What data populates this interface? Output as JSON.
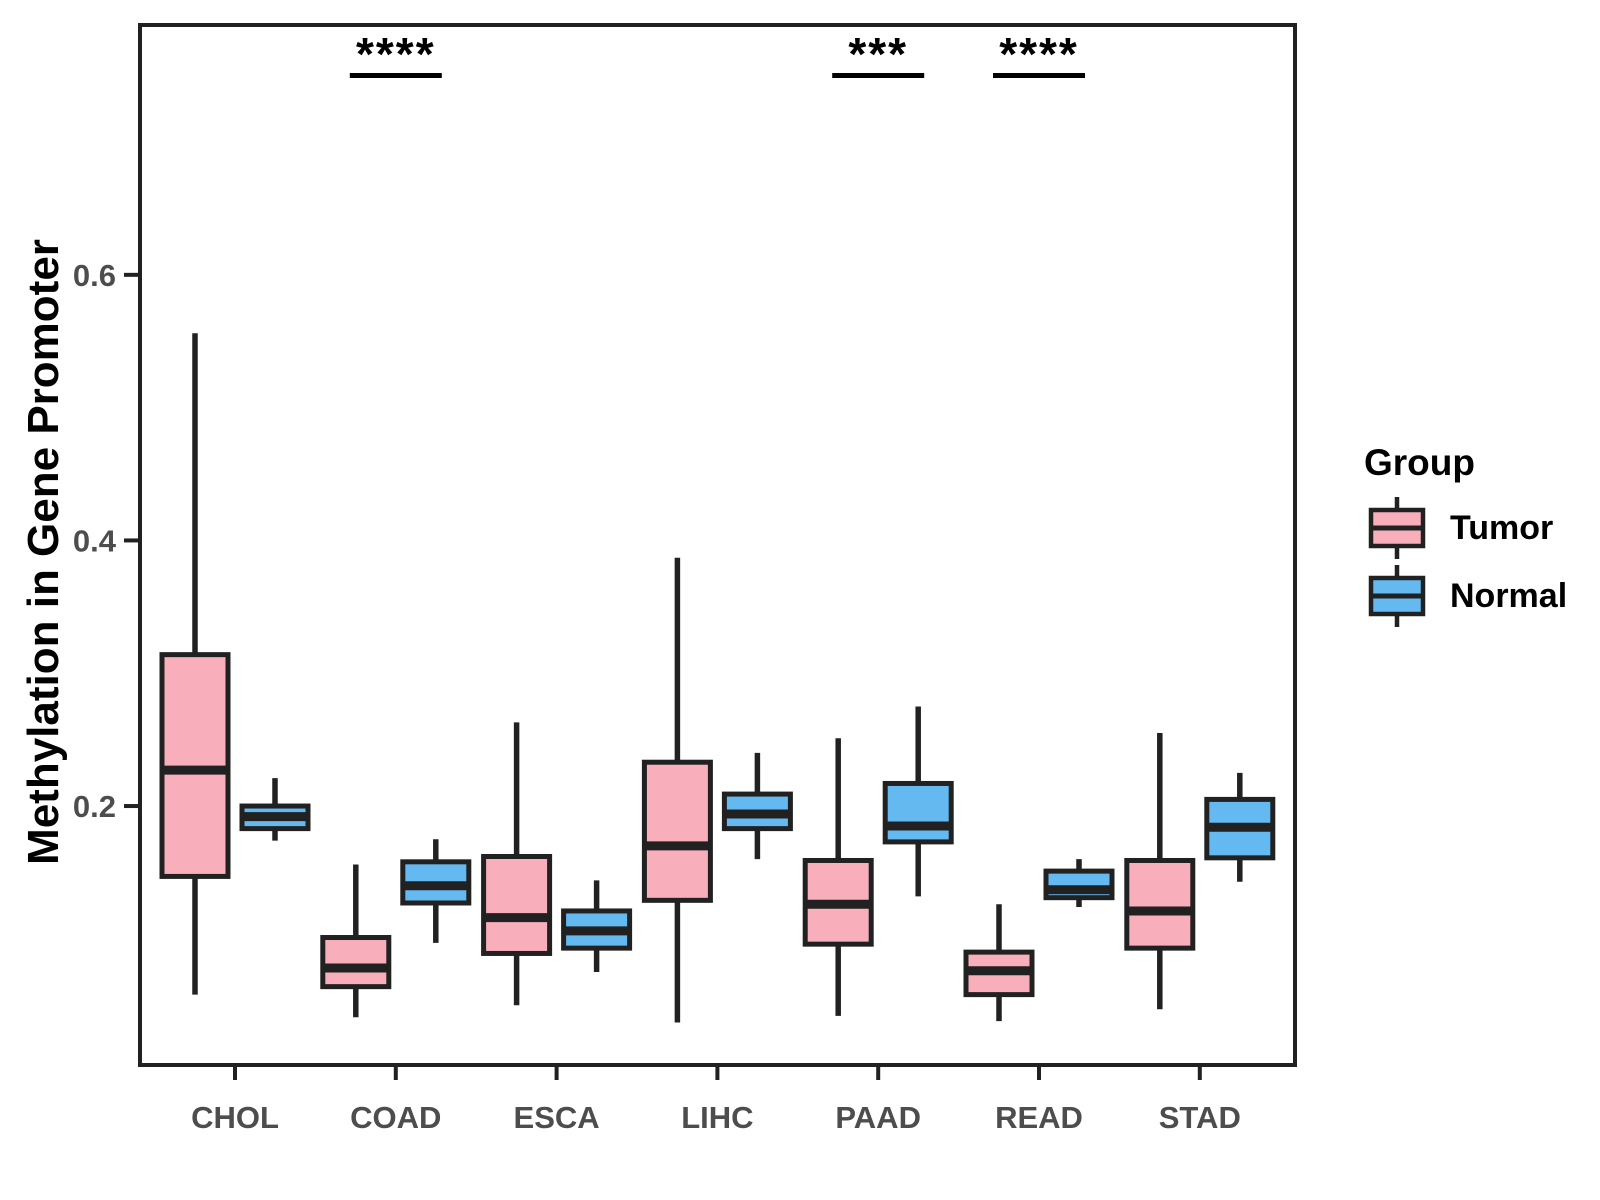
{
  "figure": {
    "background": "#FFFFFF"
  },
  "chart_data": {
    "type": "boxplot",
    "title": "",
    "xlabel": "",
    "ylabel": "Methylation in Gene Promoter",
    "categories": [
      "CHOL",
      "COAD",
      "ESCA",
      "LIHC",
      "PAAD",
      "READ",
      "STAD"
    ],
    "yticks": [
      0.2,
      0.4,
      0.6
    ],
    "ylim": [
      0.005,
      0.789
    ],
    "grid": false,
    "legend": {
      "title": "Group",
      "position": "right",
      "items": [
        {
          "label": "Tumor",
          "color": "#F9AEBB"
        },
        {
          "label": "Normal",
          "color": "#63B9F0"
        }
      ]
    },
    "series": [
      {
        "name": "Tumor",
        "color": "#F9AEBB",
        "boxes": [
          {
            "category": "CHOL",
            "whisker_low": 0.058,
            "q1": 0.147,
            "median": 0.227,
            "q3": 0.314,
            "whisker_high": 0.556
          },
          {
            "category": "COAD",
            "whisker_low": 0.041,
            "q1": 0.064,
            "median": 0.078,
            "q3": 0.101,
            "whisker_high": 0.156
          },
          {
            "category": "ESCA",
            "whisker_low": 0.05,
            "q1": 0.089,
            "median": 0.116,
            "q3": 0.162,
            "whisker_high": 0.263
          },
          {
            "category": "LIHC",
            "whisker_low": 0.037,
            "q1": 0.129,
            "median": 0.17,
            "q3": 0.233,
            "whisker_high": 0.387
          },
          {
            "category": "PAAD",
            "whisker_low": 0.042,
            "q1": 0.096,
            "median": 0.126,
            "q3": 0.159,
            "whisker_high": 0.251
          },
          {
            "category": "READ",
            "whisker_low": 0.038,
            "q1": 0.058,
            "median": 0.076,
            "q3": 0.09,
            "whisker_high": 0.126
          },
          {
            "category": "STAD",
            "whisker_low": 0.047,
            "q1": 0.093,
            "median": 0.121,
            "q3": 0.159,
            "whisker_high": 0.255
          }
        ]
      },
      {
        "name": "Normal",
        "color": "#63B9F0",
        "boxes": [
          {
            "category": "CHOL",
            "whisker_low": 0.174,
            "q1": 0.183,
            "median": 0.192,
            "q3": 0.2,
            "whisker_high": 0.221
          },
          {
            "category": "COAD",
            "whisker_low": 0.097,
            "q1": 0.127,
            "median": 0.14,
            "q3": 0.158,
            "whisker_high": 0.175
          },
          {
            "category": "ESCA",
            "whisker_low": 0.075,
            "q1": 0.093,
            "median": 0.106,
            "q3": 0.121,
            "whisker_high": 0.144
          },
          {
            "category": "LIHC",
            "whisker_low": 0.16,
            "q1": 0.183,
            "median": 0.194,
            "q3": 0.209,
            "whisker_high": 0.24
          },
          {
            "category": "PAAD",
            "whisker_low": 0.132,
            "q1": 0.173,
            "median": 0.185,
            "q3": 0.217,
            "whisker_high": 0.275
          },
          {
            "category": "READ",
            "whisker_low": 0.124,
            "q1": 0.131,
            "median": 0.137,
            "q3": 0.151,
            "whisker_high": 0.16
          },
          {
            "category": "STAD",
            "whisker_low": 0.143,
            "q1": 0.161,
            "median": 0.184,
            "q3": 0.205,
            "whisker_high": 0.225
          }
        ]
      }
    ],
    "annotations": [
      {
        "category": "COAD",
        "label": "****"
      },
      {
        "category": "PAAD",
        "label": "***"
      },
      {
        "category": "READ",
        "label": "****"
      }
    ],
    "colors": {
      "box_border": "#212121",
      "axis": "#212121",
      "tick_label": "#4D4D4D",
      "annotation": "#000000"
    }
  }
}
